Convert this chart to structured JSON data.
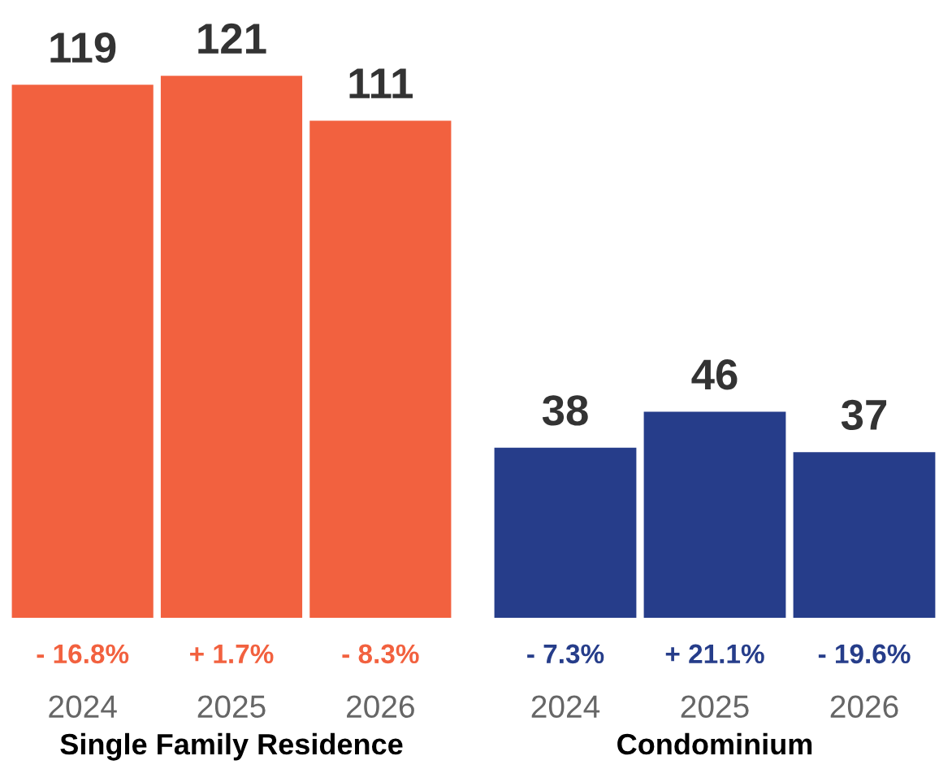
{
  "chart_data": [
    {
      "type": "bar",
      "xlabel": "Single Family Residence",
      "categories": [
        "2024",
        "2025",
        "2026"
      ],
      "values": [
        119,
        121,
        111
      ],
      "color": "#f2613f",
      "tick_labels": "x",
      "data_labels": true,
      "grid": false,
      "legend": false,
      "annotations": [
        "- 16.8%",
        "+ 1.7%",
        "- 8.3%"
      ]
    },
    {
      "type": "bar",
      "xlabel": "Condominium",
      "categories": [
        "2024",
        "2025",
        "2026"
      ],
      "values": [
        38,
        46,
        37
      ],
      "color": "#263d8a",
      "tick_labels": "x",
      "data_labels": true,
      "grid": false,
      "legend": false,
      "annotations": [
        "- 7.3%",
        "+ 21.1%",
        "- 19.6%"
      ]
    }
  ]
}
